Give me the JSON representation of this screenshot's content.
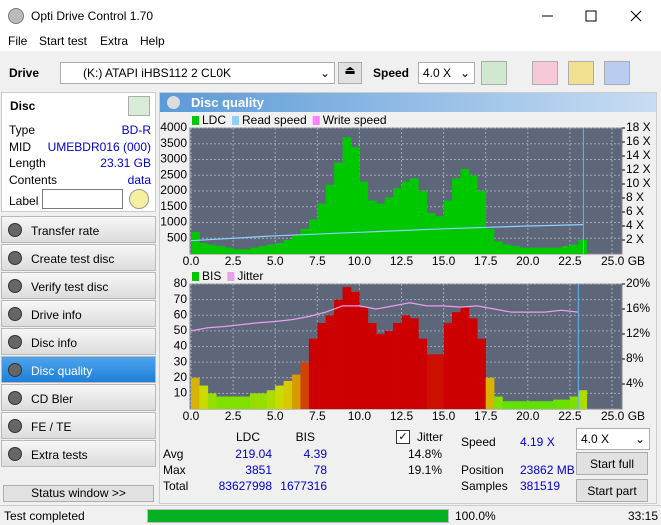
{
  "window": {
    "title": "Opti Drive Control 1.70"
  },
  "menu": [
    "File",
    "Start test",
    "Extra",
    "Help"
  ],
  "toolbar": {
    "drive_label": "Drive",
    "drive": "(K:)  ATAPI iHBS112  2 CL0K",
    "speed_label": "Speed",
    "speed": "4.0 X"
  },
  "disc": {
    "title": "Disc",
    "rows": [
      [
        "Type",
        "BD-R"
      ],
      [
        "MID",
        "UMEBDR016 (000)"
      ],
      [
        "Length",
        "23.31 GB"
      ],
      [
        "Contents",
        "data"
      ]
    ],
    "label": "Label"
  },
  "nav": {
    "items": [
      "Transfer rate",
      "Create test disc",
      "Verify test disc",
      "Drive info",
      "Disc info",
      "Disc quality",
      "CD Bler",
      "FE / TE",
      "Extra tests"
    ],
    "selected_index": 5,
    "status_button": "Status window >>"
  },
  "panel_title": "Disc quality",
  "ldc_chart": {
    "type": "bar",
    "grid": true,
    "xlim": [
      0,
      25
    ],
    "xticks": [
      {
        "value": 0,
        "label": "0.0"
      },
      2.5,
      {
        "value": 5,
        "label": "5.0"
      },
      7.5,
      {
        "value": 10,
        "label": "10.0"
      },
      12.5,
      {
        "value": 15,
        "label": "15.0"
      },
      17.5,
      {
        "value": 20,
        "label": "20.0"
      },
      22.5,
      {
        "value": 25,
        "label": "25.0 GB"
      }
    ],
    "ylim": [
      0,
      4000
    ],
    "yticks": [
      500,
      1000,
      1500,
      2000,
      2500,
      3000,
      3500,
      4000
    ],
    "y2lim": [
      0,
      18
    ],
    "y2ticks": [
      {
        "value": 2,
        "label": "2 X"
      },
      {
        "value": 4,
        "label": "4 X"
      },
      {
        "value": 6,
        "label": "6 X"
      },
      {
        "value": 8,
        "label": "8 X"
      },
      {
        "value": 10,
        "label": "10 X"
      },
      {
        "value": 12,
        "label": "12 X"
      },
      {
        "value": 14,
        "label": "14 X"
      },
      {
        "value": 16,
        "label": "16 X"
      },
      {
        "value": 18,
        "label": "18 X"
      }
    ],
    "series": [
      {
        "name": "LDC",
        "color": "#00c800",
        "x": [
          0,
          0.5,
          1,
          1.5,
          2,
          2.5,
          3,
          3.5,
          4,
          4.5,
          5,
          5.5,
          6,
          6.5,
          7,
          7.5,
          8,
          8.5,
          9,
          9.5,
          10,
          10.5,
          11,
          11.5,
          12,
          12.5,
          13,
          13.5,
          14,
          14.5,
          15,
          15.5,
          16,
          16.5,
          17,
          17.5,
          18,
          18.5,
          19,
          19.5,
          20,
          20.5,
          21,
          21.5,
          22,
          22.5,
          23
        ],
        "values": [
          700,
          350,
          300,
          250,
          200,
          150,
          150,
          200,
          250,
          300,
          350,
          450,
          600,
          800,
          1100,
          1600,
          2200,
          2900,
          3700,
          3400,
          2300,
          1700,
          1600,
          1800,
          2100,
          2300,
          2400,
          2000,
          1300,
          1200,
          1700,
          2400,
          2700,
          2500,
          2000,
          800,
          400,
          300,
          250,
          200,
          200,
          200,
          200,
          200,
          250,
          300,
          450
        ]
      },
      {
        "name": "Read speed",
        "color": "#90d0ff",
        "axis": "y2",
        "x": [
          0,
          5,
          10,
          15,
          20,
          23.3
        ],
        "values": [
          1.9,
          2.6,
          3.1,
          3.6,
          4.0,
          4.2
        ]
      },
      {
        "name": "Write speed",
        "color": "#ff80ff"
      }
    ]
  },
  "bis_chart": {
    "type": "bar",
    "grid": true,
    "xlim": [
      0,
      25
    ],
    "xticks": [
      {
        "value": 0,
        "label": "0.0"
      },
      2.5,
      {
        "value": 5,
        "label": "5.0"
      },
      7.5,
      {
        "value": 10,
        "label": "10.0"
      },
      12.5,
      {
        "value": 15,
        "label": "15.0"
      },
      17.5,
      {
        "value": 20,
        "label": "20.0"
      },
      22.5,
      {
        "value": 25,
        "label": "25.0 GB"
      }
    ],
    "ylim": [
      0,
      80
    ],
    "yticks": [
      10,
      20,
      30,
      40,
      50,
      60,
      70,
      80
    ],
    "y2lim": [
      0,
      20
    ],
    "y2ticks": [
      {
        "value": 4,
        "label": "4%"
      },
      {
        "value": 8,
        "label": "8%"
      },
      {
        "value": 12,
        "label": "12%"
      },
      {
        "value": 16,
        "label": "16%"
      },
      {
        "value": 20,
        "label": "20%"
      }
    ],
    "series": [
      {
        "name": "BIS",
        "color": "#00c800",
        "x": [
          0,
          0.5,
          1,
          1.5,
          2,
          2.5,
          3,
          3.5,
          4,
          4.5,
          5,
          5.5,
          6,
          6.5,
          7,
          7.5,
          8,
          8.5,
          9,
          9.5,
          10,
          10.5,
          11,
          11.5,
          12,
          12.5,
          13,
          13.5,
          14,
          14.5,
          15,
          15.5,
          16,
          16.5,
          17,
          17.5,
          18,
          18.5,
          19,
          19.5,
          20,
          20.5,
          21,
          21.5,
          22,
          22.5,
          23
        ],
        "values": [
          20,
          15,
          10,
          8,
          8,
          8,
          8,
          10,
          10,
          12,
          15,
          18,
          22,
          30,
          45,
          55,
          60,
          70,
          78,
          75,
          65,
          55,
          48,
          50,
          55,
          60,
          58,
          45,
          35,
          35,
          55,
          62,
          65,
          58,
          45,
          20,
          8,
          5,
          5,
          5,
          5,
          5,
          5,
          6,
          6,
          8,
          12
        ]
      },
      {
        "name": "Jitter",
        "color": "#e8a0e8",
        "axis": "y2",
        "x": [
          0,
          1,
          2,
          3,
          4,
          5,
          6,
          7,
          8,
          9,
          10,
          11,
          12,
          13,
          14,
          15,
          16,
          17,
          18,
          19,
          20,
          21,
          22,
          23
        ],
        "values": [
          12.5,
          13,
          13.2,
          13.5,
          13.8,
          14,
          14.3,
          14.8,
          15.5,
          16.5,
          16.5,
          16,
          16.5,
          17,
          16.5,
          16.5,
          16.3,
          16.5,
          16,
          15.5,
          15.5,
          15.5,
          15.8,
          15.5
        ]
      }
    ]
  },
  "stats": {
    "columns": [
      "LDC",
      "BIS"
    ],
    "rows": [
      [
        "Avg",
        "219.04",
        "4.39"
      ],
      [
        "Max",
        "3851",
        "78"
      ],
      [
        "Total",
        "83627998",
        "1677316"
      ]
    ],
    "jitter": {
      "label": "Jitter",
      "avg": "14.8%",
      "max": "19.1%"
    },
    "info": [
      [
        "Speed",
        "4.19 X"
      ],
      [
        "Position",
        "23862 MB"
      ],
      [
        "Samples",
        "381519"
      ]
    ],
    "speed_select": "4.0 X",
    "buttons": [
      "Start full",
      "Start part"
    ]
  },
  "status": {
    "text": "Test completed",
    "progress": "100.0%",
    "time": "33:15"
  }
}
